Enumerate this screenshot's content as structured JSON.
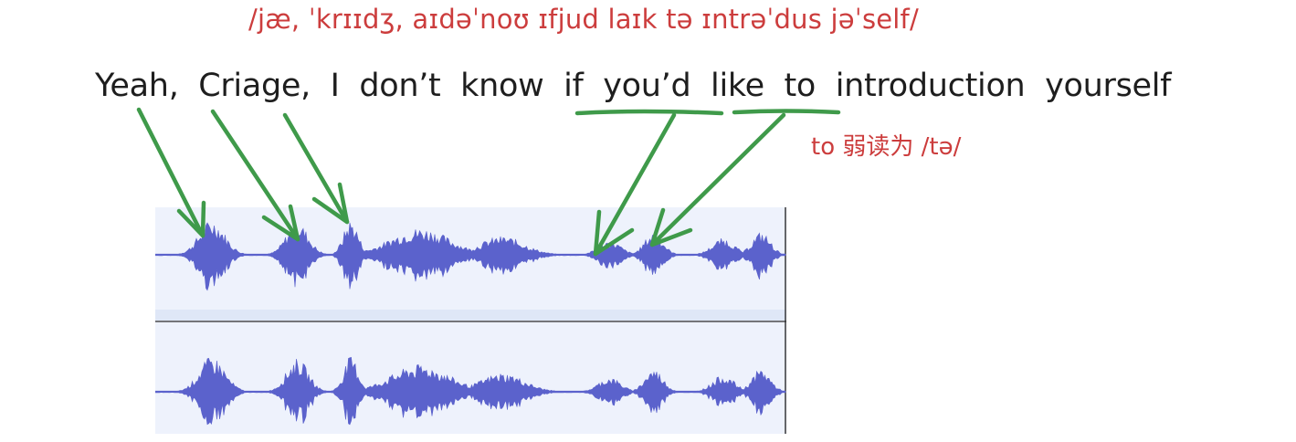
{
  "transcript": {
    "ipa": "/jæ, ˈkrɪɪdʒ, aɪdəˈnoʊ ɪfjud laɪk tə ɪntrəˈdus jəˈself/",
    "words": [
      "Yeah,",
      "Criage,",
      "I",
      "don’t",
      "know",
      "if",
      "you’d",
      "like",
      "to",
      "introduction",
      "yourself"
    ],
    "weak_form_note": "to 弱读为 /tə/"
  },
  "colors": {
    "ipa": "#cc3d3d",
    "sentence": "#1e1e1e",
    "arrows": "#3f9a4a",
    "waveform": "#5b62cc",
    "waveform_background": "#eef2fc",
    "channel_divider": "#2b2b2b"
  },
  "waveform": {
    "channels": 2,
    "bursts": [
      {
        "center": 0.09,
        "width": 0.035,
        "amp": 0.85
      },
      {
        "center": 0.225,
        "width": 0.03,
        "amp": 0.8
      },
      {
        "center": 0.31,
        "width": 0.02,
        "amp": 0.85
      },
      {
        "center": 0.42,
        "width": 0.08,
        "amp": 0.65
      },
      {
        "center": 0.55,
        "width": 0.06,
        "amp": 0.45
      },
      {
        "center": 0.72,
        "width": 0.03,
        "amp": 0.35
      },
      {
        "center": 0.79,
        "width": 0.025,
        "amp": 0.55
      },
      {
        "center": 0.9,
        "width": 0.03,
        "amp": 0.4
      },
      {
        "center": 0.96,
        "width": 0.025,
        "amp": 0.55
      }
    ]
  }
}
